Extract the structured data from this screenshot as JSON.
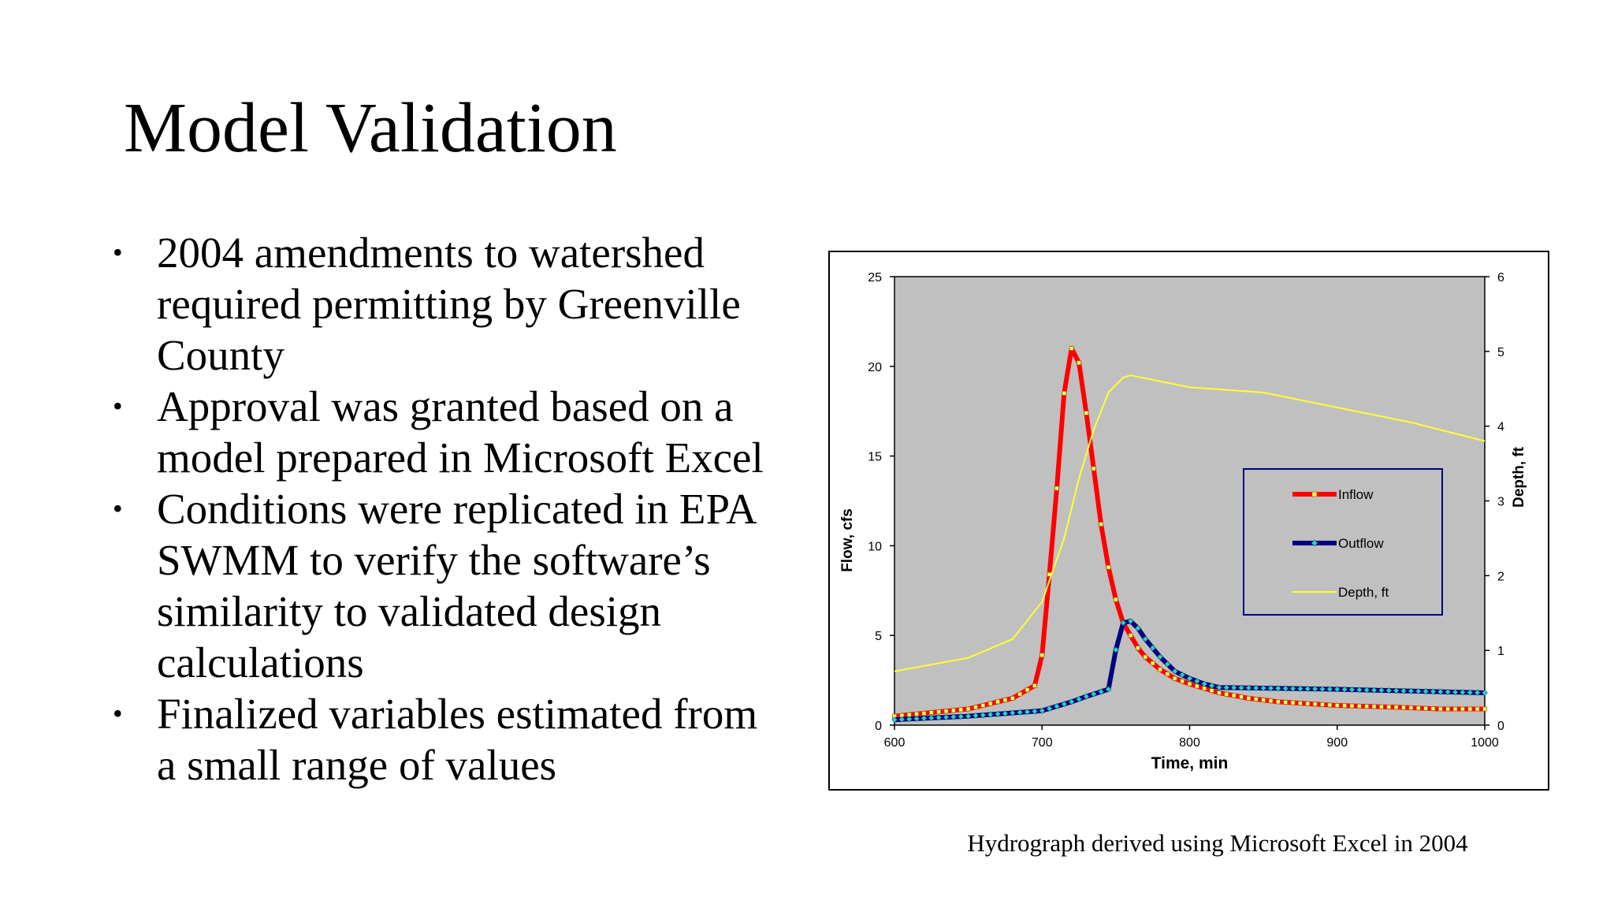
{
  "slide": {
    "title": "Model Validation",
    "bullets": [
      "2004 amendments to watershed required permitting by Greenville County",
      "Approval was granted based on a model prepared in Microsoft Excel",
      "Conditions were replicated in EPA SWMM to verify the software’s similarity to validated design calculations",
      "Finalized variables estimated from a small range of values"
    ],
    "bullet_symbol": "•",
    "caption": "Hydrograph derived using Microsoft Excel in 2004"
  },
  "chart_data": {
    "type": "line",
    "title": "",
    "xlabel": "Time, min",
    "ylabel": "Flow, cfs",
    "y2label": "Depth, ft",
    "xlim": [
      600,
      1000
    ],
    "ylim": [
      0,
      25
    ],
    "y2lim": [
      0,
      6
    ],
    "x_ticks": [
      600,
      700,
      800,
      900,
      1000
    ],
    "y_ticks": [
      0,
      5,
      10,
      15,
      20,
      25
    ],
    "y2_ticks": [
      0,
      1,
      2,
      3,
      4,
      5,
      6
    ],
    "grid": false,
    "plot_background": "#c0c0c0",
    "legend_position": "center-right",
    "series": [
      {
        "name": "Inflow",
        "axis": "left",
        "color": "#ff0000",
        "marker": "square",
        "x": [
          600,
          650,
          680,
          695,
          700,
          705,
          710,
          715,
          720,
          725,
          730,
          735,
          740,
          745,
          750,
          755,
          760,
          765,
          770,
          780,
          790,
          800,
          820,
          840,
          860,
          880,
          900,
          940,
          970,
          1000
        ],
        "values": [
          0.5,
          0.9,
          1.5,
          2.2,
          3.9,
          8.4,
          13.2,
          18.5,
          21.0,
          20.2,
          17.4,
          14.3,
          11.2,
          8.8,
          7.0,
          5.7,
          5.0,
          4.3,
          3.8,
          3.1,
          2.6,
          2.3,
          1.8,
          1.5,
          1.3,
          1.2,
          1.1,
          1.0,
          0.9,
          0.9
        ]
      },
      {
        "name": "Outflow",
        "axis": "left",
        "color": "#000080",
        "marker": "diamond",
        "x": [
          600,
          650,
          700,
          720,
          730,
          745,
          750,
          755,
          760,
          765,
          770,
          780,
          790,
          800,
          810,
          820,
          900,
          950,
          1000
        ],
        "values": [
          0.3,
          0.5,
          0.8,
          1.3,
          1.6,
          2.0,
          4.2,
          5.7,
          5.8,
          5.4,
          4.8,
          3.8,
          3.0,
          2.6,
          2.3,
          2.1,
          2.0,
          1.9,
          1.8
        ]
      },
      {
        "name": "Depth, ft",
        "axis": "right",
        "color": "#ffff33",
        "marker": "none",
        "x": [
          600,
          650,
          680,
          700,
          715,
          725,
          735,
          745,
          755,
          760,
          775,
          800,
          850,
          900,
          950,
          1000
        ],
        "values": [
          0.72,
          0.9,
          1.15,
          1.65,
          2.5,
          3.3,
          3.95,
          4.45,
          4.65,
          4.68,
          4.62,
          4.52,
          4.45,
          4.25,
          4.05,
          3.8
        ]
      }
    ]
  }
}
